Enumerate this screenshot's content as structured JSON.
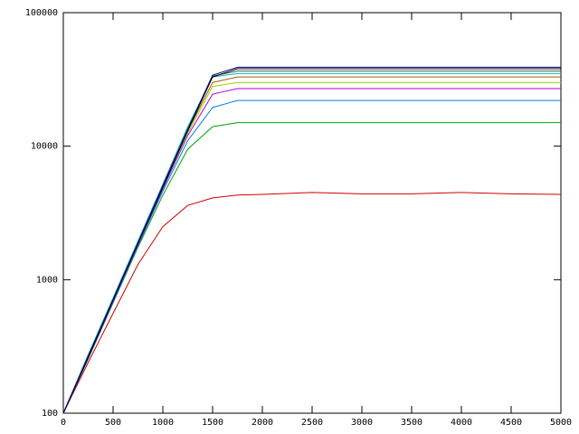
{
  "chart_data": {
    "type": "line",
    "log_y": true,
    "grid": false,
    "x": [
      0,
      250,
      500,
      750,
      1000,
      1250,
      1500,
      1750,
      2000,
      2500,
      3000,
      3500,
      4000,
      4500,
      5000
    ],
    "xlim": [
      0,
      5000
    ],
    "xticks": [
      0,
      500,
      1000,
      1500,
      2000,
      2500,
      3000,
      3500,
      4000,
      4500,
      5000
    ],
    "ylim": [
      100,
      100000
    ],
    "yticks": [
      100,
      1000,
      10000,
      100000
    ],
    "series": [
      {
        "color": "#d00000",
        "values": [
          100,
          240,
          560,
          1300,
          2500,
          3600,
          4100,
          4300,
          4350,
          4500,
          4400,
          4400,
          4500,
          4400,
          4350
        ]
      },
      {
        "color": "#00a000",
        "values": [
          100,
          255,
          670,
          1750,
          4300,
          9500,
          14000,
          15000,
          15000,
          15000,
          15000,
          15000,
          15000,
          15000,
          15000
        ]
      },
      {
        "color": "#0080e0",
        "values": [
          100,
          258,
          680,
          1800,
          4600,
          11000,
          19500,
          22000,
          22000,
          22000,
          22000,
          22000,
          22000,
          22000,
          22000
        ]
      },
      {
        "color": "#b000d0",
        "values": [
          100,
          260,
          690,
          1830,
          4800,
          12000,
          24500,
          27000,
          27000,
          27000,
          27000,
          27000,
          27000,
          27000,
          27000
        ]
      },
      {
        "color": "#a0d000",
        "values": [
          100,
          262,
          700,
          1860,
          4950,
          12500,
          28000,
          30000,
          30000,
          30000,
          30000,
          30000,
          30000,
          30000,
          30000
        ]
      },
      {
        "color": "#a06000",
        "values": [
          100,
          265,
          705,
          1880,
          5000,
          13000,
          30000,
          33000,
          33000,
          33000,
          33000,
          33000,
          33000,
          33000,
          33000
        ]
      },
      {
        "color": "#00c0c0",
        "values": [
          100,
          275,
          730,
          1950,
          5200,
          14000,
          33000,
          35000,
          35000,
          35000,
          35000,
          35000,
          35000,
          35000,
          35000
        ]
      },
      {
        "color": "#406060",
        "values": [
          100,
          270,
          720,
          1900,
          5100,
          13500,
          33500,
          36500,
          36500,
          36500,
          36500,
          36500,
          36500,
          36500,
          36500
        ]
      },
      {
        "color": "#000000",
        "values": [
          100,
          260,
          700,
          1860,
          4900,
          13000,
          33000,
          38000,
          38000,
          38000,
          38000,
          38000,
          38000,
          38000,
          38000
        ]
      },
      {
        "color": "#000080",
        "values": [
          100,
          266,
          708,
          1884,
          5012,
          13300,
          34000,
          39000,
          39000,
          39000,
          39000,
          39000,
          39000,
          39000,
          39000
        ]
      }
    ]
  }
}
